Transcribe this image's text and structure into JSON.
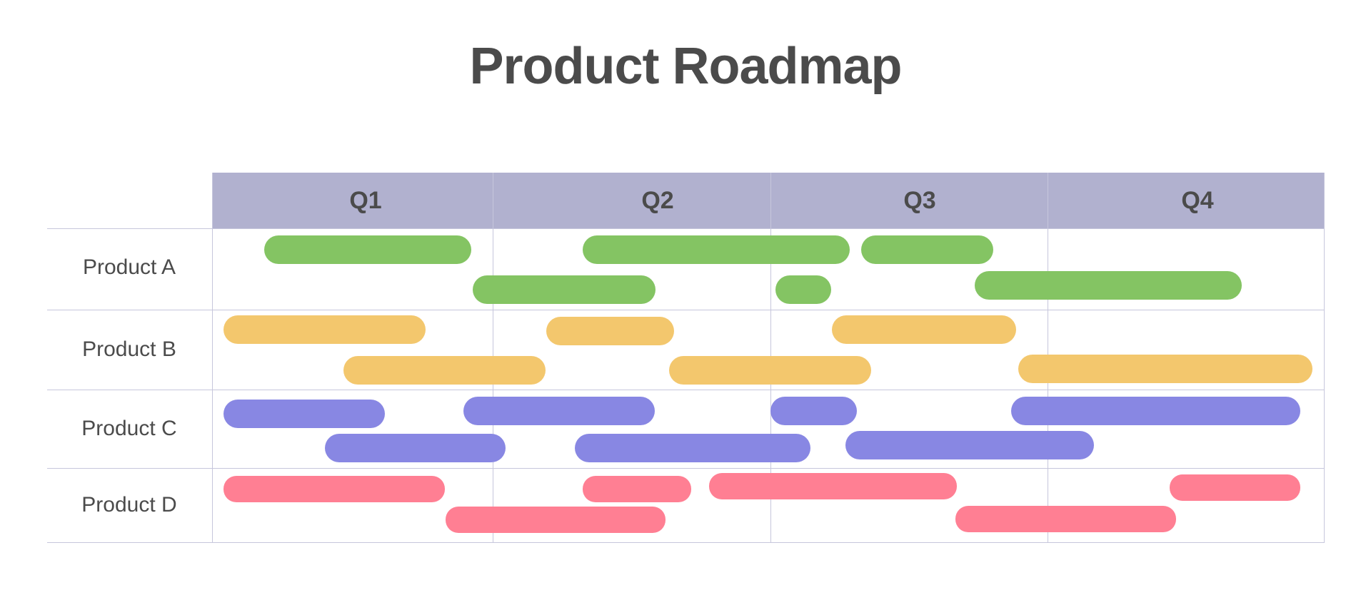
{
  "title": "Product Roadmap",
  "quarters": [
    "Q1",
    "Q2",
    "Q3",
    "Q4"
  ],
  "colors": {
    "header_band": "#b1b1cf",
    "grid": "#c6c6dc",
    "text": "#4b4b4b",
    "product_a": "#84c463",
    "product_b": "#f3c76d",
    "product_c": "#8887e3",
    "product_d": "#ff7f93"
  },
  "rows": [
    {
      "label": "Product A"
    },
    {
      "label": "Product B"
    },
    {
      "label": "Product C"
    },
    {
      "label": "Product D"
    }
  ]
}
